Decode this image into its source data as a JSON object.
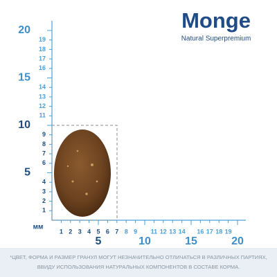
{
  "brand": {
    "name": "Monge",
    "tagline": "Natural Superpremium"
  },
  "ruler": {
    "unit": "мм",
    "vertical_small": [
      "1",
      "2",
      "3",
      "4",
      "6",
      "7",
      "8",
      "9",
      "11",
      "12",
      "13",
      "14",
      "16",
      "17",
      "18",
      "19"
    ],
    "vertical_major": [
      "5",
      "10",
      "15",
      "20"
    ],
    "horizontal_small": [
      "1",
      "2",
      "3",
      "4",
      "5",
      "6",
      "7",
      "8",
      "9",
      "11",
      "12",
      "13",
      "14",
      "16",
      "17",
      "18",
      "19"
    ],
    "horizontal_major": [
      "5",
      "10",
      "15",
      "20"
    ]
  },
  "footnote": [
    "*ЦВЕТ, ФОРМА И РАЗМЕР ГРАНУЛ МОГУТ НЕЗНАЧИТЕЛЬНО ОТЛИЧАТЬСЯ В РАЗЛИЧНЫХ ПАРТИЯХ,",
    "ВВИДУ ИСПОЛЬЗОВАНИЯ НАТУРАЛЬНЫХ КОМПОНЕНТОВ В СОСТАВЕ КОРМА."
  ]
}
